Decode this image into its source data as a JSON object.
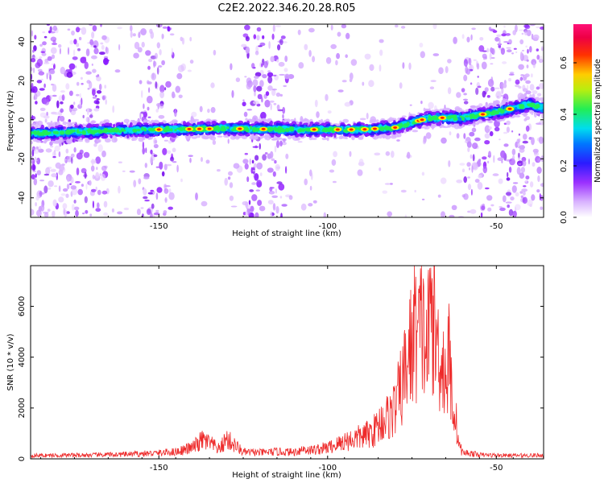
{
  "title": "C2E2.2022.346.20.28.R05",
  "chart_data": [
    {
      "type": "heatmap",
      "xlabel": "Height of straight line (km)",
      "ylabel": "Frequency (Hz)",
      "xlim": [
        -188,
        -36
      ],
      "ylim": [
        -50,
        49
      ],
      "xticks": [
        -150,
        -100,
        -50
      ],
      "xtick_labels": [
        "-150",
        "-100",
        "-50"
      ],
      "yticks": [
        -40,
        -20,
        0,
        20,
        40
      ],
      "ytick_labels": [
        "-40",
        "-20",
        "0",
        "20",
        "40"
      ],
      "colorbar": {
        "label": "Normalized spectral amplitude",
        "range": [
          0.0,
          0.75
        ],
        "ticks": [
          0.0,
          0.2,
          0.4,
          0.6
        ],
        "tick_labels": [
          "0.0",
          "0.2",
          "0.4",
          "0.6"
        ],
        "colormap": "white-purple-blue-cyan-green-yellow-red-magenta"
      },
      "ridge": {
        "description_points_height_km": [
          -188,
          -170,
          -150,
          -130,
          -110,
          -100,
          -90,
          -80,
          -70,
          -60,
          -50,
          -40,
          -36
        ],
        "frequency_hz": [
          -7,
          -6,
          -5,
          -4.5,
          -5,
          -5,
          -5,
          -4,
          1,
          1,
          4,
          8,
          6
        ]
      },
      "noise_bands_height_km": [
        [
          -188,
          -165
        ],
        [
          -156,
          -145
        ],
        [
          -125,
          -112
        ],
        [
          -60,
          -36
        ]
      ]
    },
    {
      "type": "line",
      "xlabel": "Height of straight line (km)",
      "ylabel": "SNR (10 * v/v)",
      "xlim": [
        -188,
        -36
      ],
      "ylim": [
        0,
        7600
      ],
      "xticks": [
        -150,
        -100,
        -50
      ],
      "xtick_labels": [
        "-150",
        "-100",
        "-50"
      ],
      "yticks": [
        0,
        2000,
        4000,
        6000
      ],
      "ytick_labels": [
        "0",
        "2000",
        "4000",
        "6000"
      ],
      "series": [
        {
          "color": "#ee2a2a",
          "x": [
            -188,
            -180,
            -170,
            -160,
            -150,
            -145,
            -140,
            -137,
            -135,
            -132,
            -130,
            -127,
            -125,
            -120,
            -115,
            -110,
            -107,
            -105,
            -100,
            -97,
            -95,
            -92,
            -90,
            -88,
            -86,
            -84,
            -82,
            -80,
            -78,
            -76,
            -75,
            -74,
            -73,
            -72,
            -71,
            -70,
            -69,
            -68,
            -67,
            -66,
            -65,
            -64,
            -63,
            -62,
            -61,
            -60,
            -58,
            -55,
            -50,
            -45,
            -40,
            -36
          ],
          "y": [
            150,
            160,
            170,
            200,
            260,
            320,
            500,
            850,
            700,
            420,
            900,
            550,
            300,
            280,
            320,
            300,
            450,
            380,
            500,
            650,
            800,
            900,
            1000,
            1100,
            1300,
            1700,
            1900,
            2300,
            3300,
            4600,
            5200,
            6100,
            5400,
            6300,
            4800,
            5600,
            7300,
            5200,
            4900,
            4500,
            3500,
            4600,
            2600,
            1800,
            600,
            280,
            260,
            180,
            160,
            150,
            160,
            160
          ]
        }
      ]
    }
  ]
}
